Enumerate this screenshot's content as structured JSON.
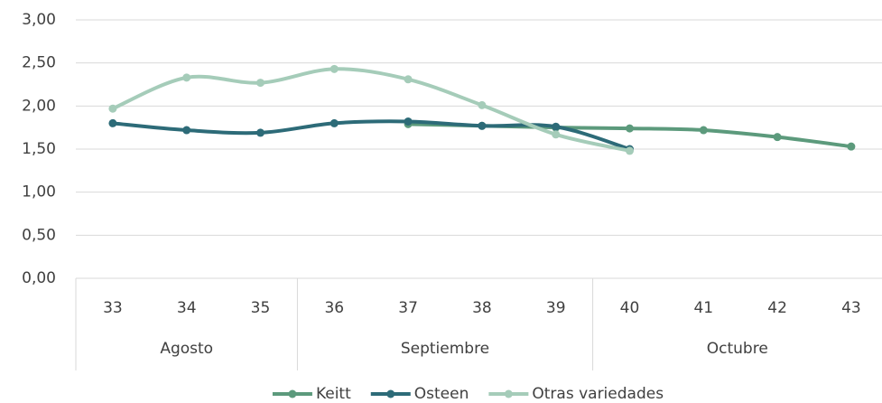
{
  "chart_data": {
    "type": "line",
    "categories": [
      "33",
      "34",
      "35",
      "36",
      "37",
      "38",
      "39",
      "40",
      "41",
      "42",
      "43"
    ],
    "groups": [
      "Agosto",
      "Septiembre",
      "Octubre"
    ],
    "group_sizes": [
      3,
      4,
      4
    ],
    "series": [
      {
        "name": "Keitt",
        "color": "#5c9a7c",
        "values": [
          null,
          null,
          null,
          null,
          1.79,
          1.77,
          1.75,
          1.74,
          1.72,
          1.64,
          1.53
        ]
      },
      {
        "name": "Osteen",
        "color": "#2d6b78",
        "values": [
          1.8,
          1.72,
          1.69,
          1.8,
          1.82,
          1.77,
          1.76,
          1.5,
          null,
          null,
          null
        ]
      },
      {
        "name": "Otras variedades",
        "color": "#a5ccb9",
        "values": [
          1.97,
          2.33,
          2.27,
          2.43,
          2.31,
          2.01,
          1.67,
          1.48,
          null,
          null,
          null
        ]
      }
    ],
    "ylim": [
      0,
      3
    ],
    "yticks": [
      {
        "value": 0,
        "label": "0,00"
      },
      {
        "value": 0.5,
        "label": "0,50"
      },
      {
        "value": 1,
        "label": "1,00"
      },
      {
        "value": 1.5,
        "label": "1,50"
      },
      {
        "value": 2,
        "label": "2,00"
      },
      {
        "value": 2.5,
        "label": "2,50"
      },
      {
        "value": 3,
        "label": "3,00"
      }
    ],
    "grid": true,
    "legend": "bottom"
  }
}
